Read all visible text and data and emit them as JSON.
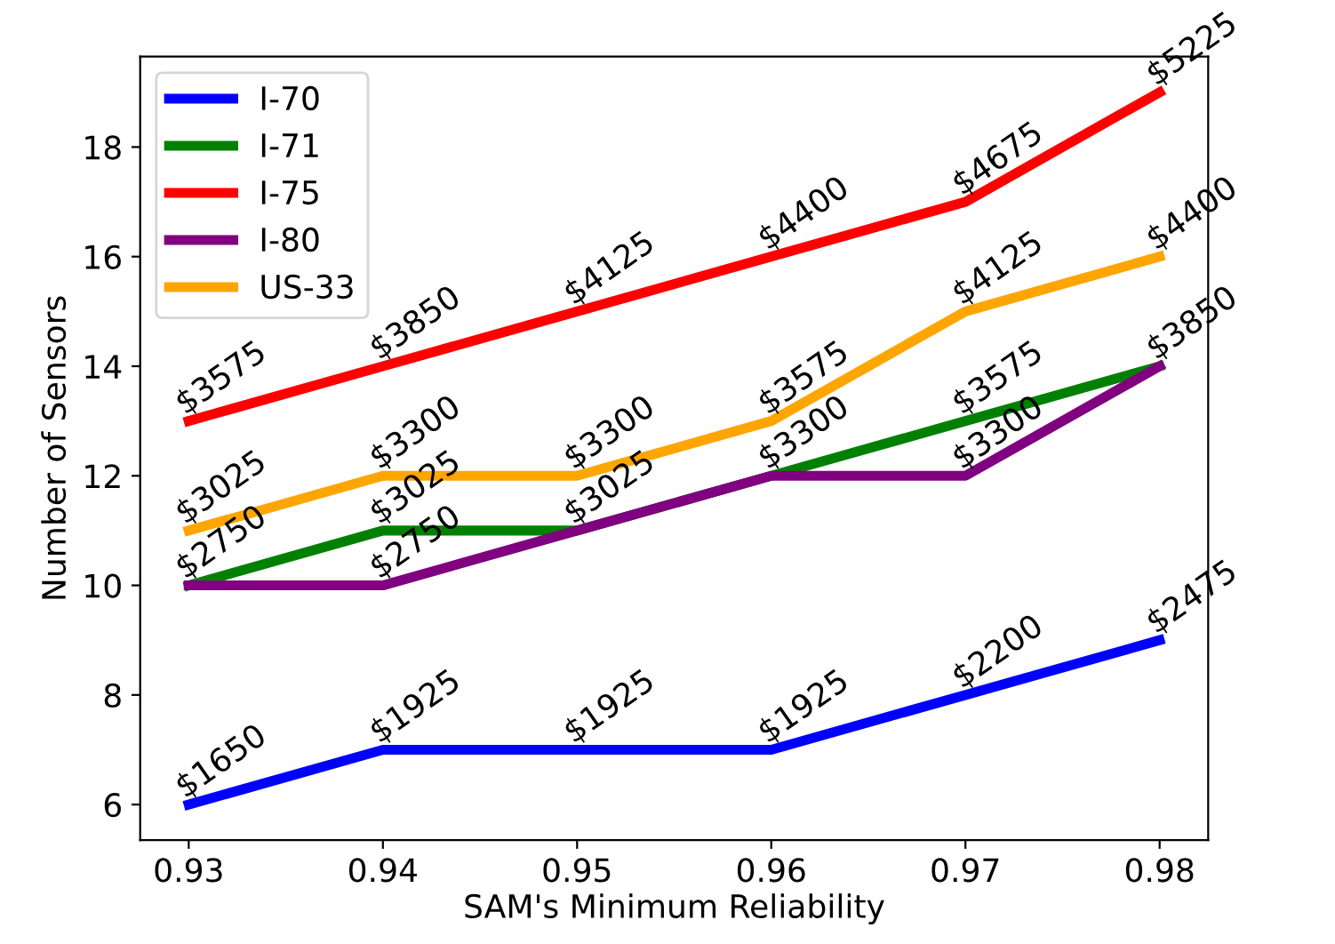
{
  "chart_data": {
    "type": "line",
    "xlabel": "SAM's Minimum Reliability",
    "ylabel": "Number of Sensors",
    "x": [
      0.93,
      0.94,
      0.95,
      0.96,
      0.97,
      0.98
    ],
    "xlim": [
      0.9275,
      0.9825
    ],
    "xticks": [
      {
        "value": 0.93,
        "label": "0.93"
      },
      {
        "value": 0.94,
        "label": "0.94"
      },
      {
        "value": 0.95,
        "label": "0.95"
      },
      {
        "value": 0.96,
        "label": "0.96"
      },
      {
        "value": 0.97,
        "label": "0.97"
      },
      {
        "value": 0.98,
        "label": "0.98"
      }
    ],
    "ylim": [
      5.35,
      19.65
    ],
    "yticks": [
      6,
      8,
      10,
      12,
      14,
      16,
      18
    ],
    "grid": false,
    "legend": "top left",
    "series": [
      {
        "name": "I-70",
        "color": "#0000ff",
        "values": [
          6,
          7,
          7,
          7,
          8,
          9
        ]
      },
      {
        "name": "I-71",
        "color": "#008000",
        "values": [
          10,
          11,
          11,
          12,
          13,
          14
        ]
      },
      {
        "name": "I-75",
        "color": "#ff0000",
        "values": [
          13,
          14,
          15,
          16,
          17,
          19
        ]
      },
      {
        "name": "I-80",
        "color": "#800080",
        "values": [
          10,
          10,
          11,
          12,
          12,
          14
        ]
      },
      {
        "name": "US-33",
        "color": "#ffa500",
        "values": [
          11,
          12,
          12,
          13,
          15,
          16
        ]
      }
    ],
    "annotations": [
      {
        "text": "$1650",
        "x": 0.93,
        "y": 6
      },
      {
        "text": "$1925",
        "x": 0.94,
        "y": 7
      },
      {
        "text": "$1925",
        "x": 0.95,
        "y": 7
      },
      {
        "text": "$1925",
        "x": 0.96,
        "y": 7
      },
      {
        "text": "$2200",
        "x": 0.97,
        "y": 8
      },
      {
        "text": "$2475",
        "x": 0.98,
        "y": 9
      },
      {
        "text": "$2750",
        "x": 0.93,
        "y": 10
      },
      {
        "text": "$3025",
        "x": 0.94,
        "y": 11
      },
      {
        "text": "$3025",
        "x": 0.95,
        "y": 11
      },
      {
        "text": "$3300",
        "x": 0.96,
        "y": 12
      },
      {
        "text": "$3575",
        "x": 0.97,
        "y": 13
      },
      {
        "text": "$3850",
        "x": 0.98,
        "y": 14
      },
      {
        "text": "$3575",
        "x": 0.93,
        "y": 13
      },
      {
        "text": "$3850",
        "x": 0.94,
        "y": 14
      },
      {
        "text": "$4125",
        "x": 0.95,
        "y": 15
      },
      {
        "text": "$4400",
        "x": 0.96,
        "y": 16
      },
      {
        "text": "$4675",
        "x": 0.97,
        "y": 17
      },
      {
        "text": "$5225",
        "x": 0.98,
        "y": 19
      },
      {
        "text": "$2750",
        "x": 0.94,
        "y": 10
      },
      {
        "text": "$3300",
        "x": 0.97,
        "y": 12
      },
      {
        "text": "$3025",
        "x": 0.93,
        "y": 11
      },
      {
        "text": "$3300",
        "x": 0.94,
        "y": 12
      },
      {
        "text": "$3300",
        "x": 0.95,
        "y": 12
      },
      {
        "text": "$3575",
        "x": 0.96,
        "y": 13
      },
      {
        "text": "$4125",
        "x": 0.97,
        "y": 15
      },
      {
        "text": "$4400",
        "x": 0.98,
        "y": 16
      }
    ]
  }
}
